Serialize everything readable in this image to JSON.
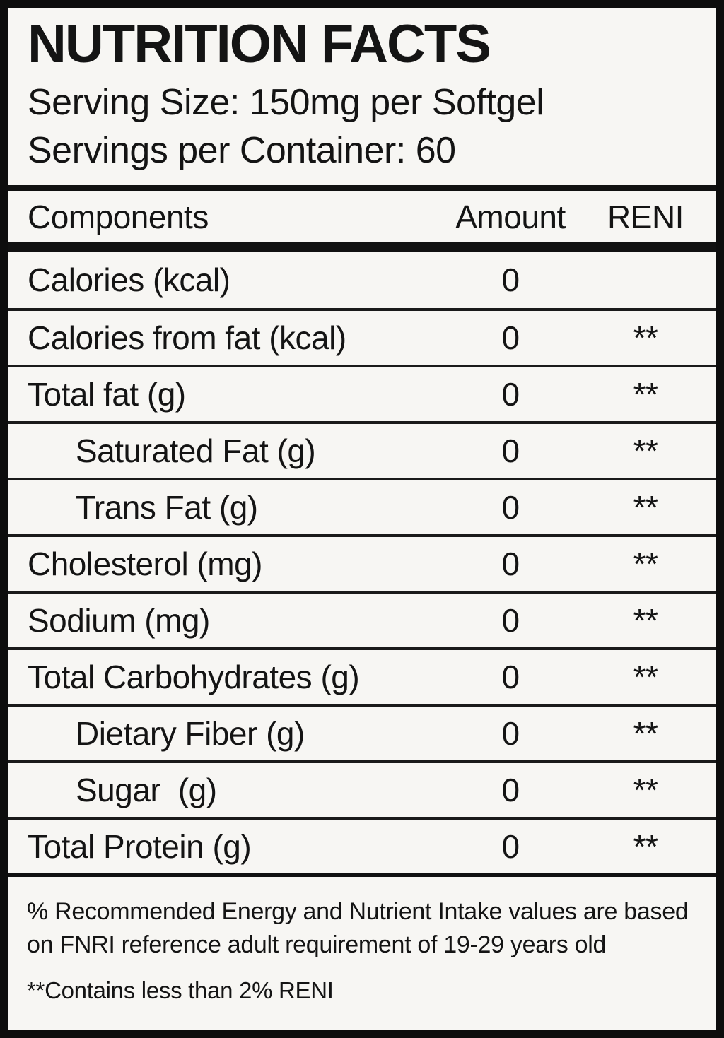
{
  "header": {
    "title": "NUTRITION FACTS",
    "serving_size": "Serving Size: 150mg per Softgel",
    "servings_per_container": "Servings per Container: 60"
  },
  "table": {
    "columns": [
      "Components",
      "Amount",
      "RENI"
    ],
    "rows": [
      {
        "component": "Calories (kcal)",
        "amount": "0",
        "reni": "",
        "indent": false
      },
      {
        "component": "Calories from fat (kcal)",
        "amount": "0",
        "reni": "**",
        "indent": false
      },
      {
        "component": "Total fat (g)",
        "amount": "0",
        "reni": "**",
        "indent": false
      },
      {
        "component": "Saturated Fat (g)",
        "amount": "0",
        "reni": "**",
        "indent": true
      },
      {
        "component": "Trans Fat (g)",
        "amount": "0",
        "reni": "**",
        "indent": true
      },
      {
        "component": "Cholesterol (mg)",
        "amount": "0",
        "reni": "**",
        "indent": false
      },
      {
        "component": "Sodium (mg)",
        "amount": "0",
        "reni": "**",
        "indent": false
      },
      {
        "component": "Total Carbohydrates (g)",
        "amount": "0",
        "reni": "**",
        "indent": false
      },
      {
        "component": "Dietary Fiber (g)",
        "amount": "0",
        "reni": "**",
        "indent": true
      },
      {
        "component": "Sugar  (g)",
        "amount": "0",
        "reni": "**",
        "indent": true
      },
      {
        "component": "Total Protein (g)",
        "amount": "0",
        "reni": "**",
        "indent": false
      }
    ]
  },
  "footnotes": {
    "reni_note": "% Recommended Energy and Nutrient Intake values are based on FNRI reference adult requirement of 19-29 years old",
    "contains_note": "**Contains less than 2% RENI"
  },
  "colors": {
    "ink": "#141414",
    "paper": "#f7f6f3",
    "rule": "#111111"
  }
}
